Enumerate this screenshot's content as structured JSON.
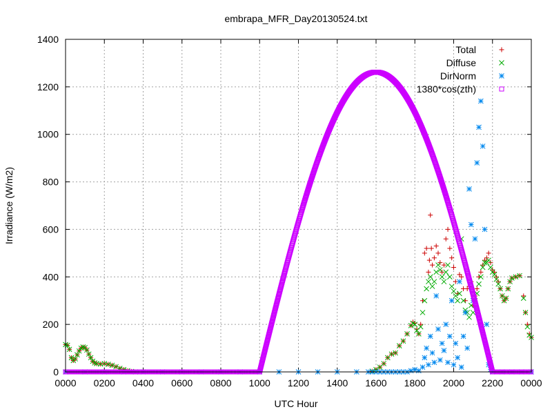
{
  "chart_data": {
    "type": "scatter",
    "title": "embrapa_MFR_Day20130524.txt",
    "xlabel": "UTC Hour",
    "ylabel": "Irradiance (W/m2)",
    "xlim": [
      0,
      24
    ],
    "ylim": [
      0,
      1400
    ],
    "x_ticks": [
      0,
      2,
      4,
      6,
      8,
      10,
      12,
      14,
      16,
      18,
      20,
      22,
      24
    ],
    "x_tick_labels": [
      "0000",
      "0200",
      "0400",
      "0600",
      "0800",
      "1000",
      "1200",
      "1400",
      "1600",
      "1800",
      "2000",
      "2200",
      "0000"
    ],
    "y_ticks": [
      0,
      200,
      400,
      600,
      800,
      1000,
      1200,
      1400
    ],
    "y_tick_labels": [
      "0",
      "200",
      "400",
      "600",
      "800",
      "1000",
      "1200",
      "1400"
    ],
    "grid": true,
    "legend_position": "top-right",
    "series": [
      {
        "name": "Total",
        "marker": "plus",
        "color": "#cc0000",
        "points": [
          [
            0.0,
            115
          ],
          [
            0.1,
            112
          ],
          [
            0.2,
            95
          ],
          [
            0.3,
            60
          ],
          [
            0.4,
            48
          ],
          [
            0.5,
            55
          ],
          [
            0.6,
            72
          ],
          [
            0.7,
            88
          ],
          [
            0.8,
            100
          ],
          [
            0.9,
            105
          ],
          [
            1.0,
            102
          ],
          [
            1.1,
            92
          ],
          [
            1.2,
            75
          ],
          [
            1.3,
            60
          ],
          [
            1.4,
            45
          ],
          [
            1.5,
            38
          ],
          [
            1.6,
            35
          ],
          [
            1.8,
            33
          ],
          [
            2.0,
            35
          ],
          [
            2.2,
            32
          ],
          [
            2.4,
            28
          ],
          [
            2.6,
            22
          ],
          [
            2.8,
            15
          ],
          [
            3.0,
            10
          ],
          [
            3.2,
            5
          ],
          [
            3.4,
            2
          ],
          [
            3.6,
            0
          ],
          [
            15.8,
            3
          ],
          [
            16.0,
            10
          ],
          [
            16.2,
            20
          ],
          [
            16.4,
            35
          ],
          [
            16.6,
            60
          ],
          [
            16.8,
            75
          ],
          [
            17.0,
            80
          ],
          [
            17.2,
            110
          ],
          [
            17.4,
            130
          ],
          [
            17.6,
            160
          ],
          [
            17.8,
            195
          ],
          [
            17.9,
            210
          ],
          [
            18.0,
            205
          ],
          [
            18.1,
            180
          ],
          [
            18.2,
            160
          ],
          [
            18.3,
            200
          ],
          [
            18.4,
            300
          ],
          [
            18.5,
            500
          ],
          [
            18.6,
            520
          ],
          [
            18.7,
            420
          ],
          [
            18.75,
            470
          ],
          [
            18.8,
            660
          ],
          [
            18.85,
            520
          ],
          [
            18.9,
            450
          ],
          [
            19.0,
            480
          ],
          [
            19.1,
            530
          ],
          [
            19.2,
            500
          ],
          [
            19.3,
            460
          ],
          [
            19.4,
            420
          ],
          [
            19.5,
            450
          ],
          [
            19.6,
            560
          ],
          [
            19.7,
            600
          ],
          [
            19.8,
            520
          ],
          [
            19.9,
            480
          ],
          [
            20.0,
            440
          ],
          [
            20.1,
            380
          ],
          [
            20.2,
            330
          ],
          [
            20.3,
            410
          ],
          [
            20.4,
            400
          ],
          [
            20.5,
            350
          ],
          [
            20.6,
            300
          ],
          [
            20.7,
            350
          ],
          [
            20.8,
            360
          ],
          [
            20.9,
            380
          ],
          [
            21.0,
            280
          ],
          [
            21.1,
            320
          ],
          [
            21.2,
            350
          ],
          [
            21.3,
            400
          ],
          [
            21.4,
            420
          ],
          [
            21.5,
            450
          ],
          [
            21.6,
            470
          ],
          [
            21.7,
            480
          ],
          [
            21.8,
            500
          ],
          [
            21.9,
            460
          ],
          [
            22.0,
            430
          ],
          [
            22.1,
            420
          ],
          [
            22.2,
            400
          ],
          [
            22.3,
            380
          ],
          [
            22.4,
            350
          ],
          [
            22.5,
            320
          ],
          [
            22.6,
            300
          ],
          [
            22.7,
            310
          ],
          [
            22.8,
            350
          ],
          [
            22.9,
            380
          ],
          [
            23.0,
            395
          ],
          [
            23.2,
            400
          ],
          [
            23.4,
            405
          ],
          [
            23.6,
            320
          ],
          [
            23.7,
            250
          ],
          [
            23.8,
            200
          ],
          [
            23.9,
            160
          ],
          [
            24.0,
            145
          ]
        ]
      },
      {
        "name": "Diffuse",
        "marker": "cross",
        "color": "#00aa00",
        "points": [
          [
            0.0,
            115
          ],
          [
            0.1,
            112
          ],
          [
            0.2,
            95
          ],
          [
            0.3,
            60
          ],
          [
            0.4,
            48
          ],
          [
            0.5,
            55
          ],
          [
            0.6,
            72
          ],
          [
            0.7,
            88
          ],
          [
            0.8,
            100
          ],
          [
            0.9,
            105
          ],
          [
            1.0,
            102
          ],
          [
            1.1,
            92
          ],
          [
            1.2,
            75
          ],
          [
            1.3,
            60
          ],
          [
            1.4,
            45
          ],
          [
            1.5,
            38
          ],
          [
            1.6,
            35
          ],
          [
            1.8,
            33
          ],
          [
            2.0,
            35
          ],
          [
            2.2,
            32
          ],
          [
            2.4,
            28
          ],
          [
            2.6,
            22
          ],
          [
            2.8,
            15
          ],
          [
            3.0,
            10
          ],
          [
            3.2,
            5
          ],
          [
            3.4,
            2
          ],
          [
            3.6,
            0
          ],
          [
            15.8,
            3
          ],
          [
            16.0,
            10
          ],
          [
            16.2,
            20
          ],
          [
            16.4,
            35
          ],
          [
            16.6,
            60
          ],
          [
            16.8,
            75
          ],
          [
            17.0,
            80
          ],
          [
            17.2,
            110
          ],
          [
            17.4,
            130
          ],
          [
            17.6,
            160
          ],
          [
            17.8,
            195
          ],
          [
            17.9,
            205
          ],
          [
            18.0,
            200
          ],
          [
            18.1,
            175
          ],
          [
            18.2,
            160
          ],
          [
            18.3,
            190
          ],
          [
            18.4,
            250
          ],
          [
            18.5,
            300
          ],
          [
            18.6,
            350
          ],
          [
            18.7,
            380
          ],
          [
            18.8,
            400
          ],
          [
            18.9,
            360
          ],
          [
            19.0,
            380
          ],
          [
            19.1,
            420
          ],
          [
            19.2,
            450
          ],
          [
            19.3,
            430
          ],
          [
            19.4,
            400
          ],
          [
            19.5,
            380
          ],
          [
            19.6,
            420
          ],
          [
            19.7,
            450
          ],
          [
            19.8,
            400
          ],
          [
            19.9,
            360
          ],
          [
            20.0,
            340
          ],
          [
            20.1,
            320
          ],
          [
            20.2,
            300
          ],
          [
            20.3,
            330
          ],
          [
            20.4,
            560
          ],
          [
            20.5,
            300
          ],
          [
            20.6,
            260
          ],
          [
            20.7,
            250
          ],
          [
            20.8,
            230
          ],
          [
            20.9,
            280
          ],
          [
            21.0,
            250
          ],
          [
            21.1,
            300
          ],
          [
            21.2,
            330
          ],
          [
            21.3,
            370
          ],
          [
            21.4,
            400
          ],
          [
            21.5,
            440
          ],
          [
            21.6,
            460
          ],
          [
            21.7,
            460
          ],
          [
            21.8,
            470
          ],
          [
            21.9,
            440
          ],
          [
            22.0,
            420
          ],
          [
            22.1,
            410
          ],
          [
            22.2,
            390
          ],
          [
            22.3,
            370
          ],
          [
            22.4,
            350
          ],
          [
            22.5,
            320
          ],
          [
            22.6,
            300
          ],
          [
            22.7,
            310
          ],
          [
            22.8,
            350
          ],
          [
            22.9,
            380
          ],
          [
            23.0,
            395
          ],
          [
            23.2,
            400
          ],
          [
            23.4,
            405
          ],
          [
            23.6,
            310
          ],
          [
            23.7,
            250
          ],
          [
            23.8,
            190
          ],
          [
            23.9,
            155
          ],
          [
            24.0,
            145
          ]
        ]
      },
      {
        "name": "DirNorm",
        "marker": "star",
        "color": "#0088ee",
        "points": [
          [
            0.0,
            0
          ],
          [
            1.0,
            0
          ],
          [
            2.0,
            0
          ],
          [
            3.0,
            0
          ],
          [
            4.0,
            0
          ],
          [
            5.0,
            0
          ],
          [
            6.0,
            0
          ],
          [
            7.0,
            0
          ],
          [
            8.0,
            0
          ],
          [
            9.0,
            0
          ],
          [
            10.0,
            0
          ],
          [
            11.0,
            0
          ],
          [
            12.0,
            0
          ],
          [
            13.0,
            0
          ],
          [
            14.0,
            0
          ],
          [
            15.0,
            0
          ],
          [
            15.6,
            0
          ],
          [
            15.8,
            0
          ],
          [
            16.0,
            0
          ],
          [
            16.2,
            0
          ],
          [
            16.4,
            0
          ],
          [
            16.6,
            0
          ],
          [
            16.8,
            0
          ],
          [
            17.0,
            0
          ],
          [
            17.2,
            0
          ],
          [
            17.4,
            0
          ],
          [
            17.6,
            0
          ],
          [
            17.8,
            5
          ],
          [
            18.0,
            10
          ],
          [
            18.2,
            5
          ],
          [
            18.4,
            20
          ],
          [
            18.5,
            60
          ],
          [
            18.6,
            100
          ],
          [
            18.7,
            30
          ],
          [
            18.8,
            150
          ],
          [
            18.9,
            80
          ],
          [
            19.0,
            40
          ],
          [
            19.1,
            320
          ],
          [
            19.2,
            180
          ],
          [
            19.3,
            50
          ],
          [
            19.4,
            120
          ],
          [
            19.5,
            90
          ],
          [
            19.6,
            200
          ],
          [
            19.7,
            40
          ],
          [
            19.8,
            150
          ],
          [
            19.9,
            300
          ],
          [
            20.0,
            30
          ],
          [
            20.1,
            120
          ],
          [
            20.2,
            60
          ],
          [
            20.3,
            380
          ],
          [
            20.4,
            20
          ],
          [
            20.5,
            150
          ],
          [
            20.6,
            250
          ],
          [
            20.7,
            100
          ],
          [
            20.8,
            770
          ],
          [
            20.9,
            620
          ],
          [
            21.0,
            300
          ],
          [
            21.1,
            560
          ],
          [
            21.2,
            880
          ],
          [
            21.3,
            1030
          ],
          [
            21.4,
            1140
          ],
          [
            21.5,
            950
          ],
          [
            21.6,
            600
          ],
          [
            21.7,
            200
          ],
          [
            21.8,
            30
          ],
          [
            21.9,
            10
          ],
          [
            22.0,
            0
          ],
          [
            22.5,
            0
          ],
          [
            23.0,
            0
          ],
          [
            23.5,
            0
          ],
          [
            24.0,
            0
          ]
        ]
      },
      {
        "name": "1380*cos(zth)",
        "marker": "square",
        "color": "#cc00ff",
        "curve": {
          "rise": 10.0,
          "set": 22.0,
          "peak": 1262
        },
        "points": [
          [
            0,
            0
          ],
          [
            2,
            0
          ],
          [
            4,
            0
          ],
          [
            6,
            0
          ],
          [
            8,
            0
          ],
          [
            10,
            0
          ],
          [
            22,
            0
          ],
          [
            24,
            0
          ]
        ]
      }
    ]
  }
}
